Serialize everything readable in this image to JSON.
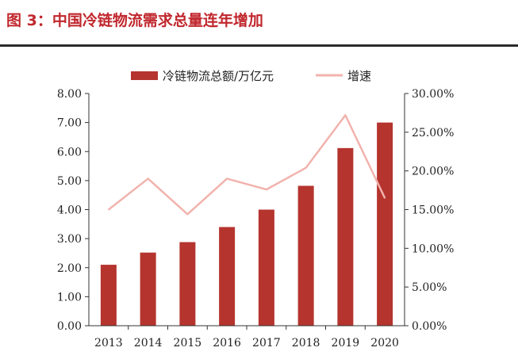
{
  "title": "图 3：中国冷链物流需求总量连年增加",
  "colors": {
    "title": "#c0272d",
    "bar": "#b5342e",
    "line": "#f2b3ad",
    "axis": "#333333"
  },
  "chart_data": {
    "type": "bar+line",
    "categories": [
      "2013",
      "2014",
      "2015",
      "2016",
      "2017",
      "2018",
      "2019",
      "2020"
    ],
    "series": [
      {
        "name": "冷链物流总额/万亿元",
        "type": "bar",
        "axis": "left",
        "values": [
          2.1,
          2.52,
          2.88,
          3.4,
          4.0,
          4.82,
          6.12,
          7.0
        ]
      },
      {
        "name": "增速",
        "type": "line",
        "axis": "right",
        "values": [
          15.0,
          19.0,
          14.4,
          19.0,
          17.6,
          20.4,
          27.2,
          16.5
        ]
      }
    ],
    "left_axis": {
      "min": 0,
      "max": 8,
      "step": 1,
      "ticks": [
        "0.00",
        "1.00",
        "2.00",
        "3.00",
        "4.00",
        "5.00",
        "6.00",
        "7.00",
        "8.00"
      ]
    },
    "right_axis": {
      "min": 0,
      "max": 30,
      "step": 5,
      "ticks": [
        "0.00%",
        "5.00%",
        "10.00%",
        "15.00%",
        "20.00%",
        "25.00%",
        "30.00%"
      ]
    },
    "legend_position": "top",
    "grid": false
  }
}
